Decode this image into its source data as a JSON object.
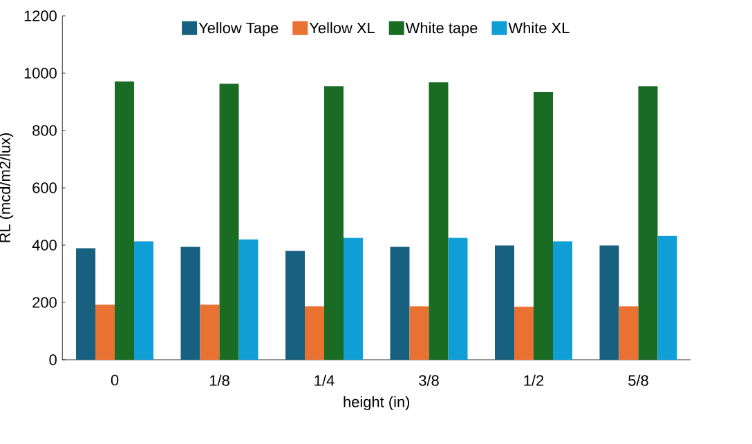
{
  "chart_data": {
    "type": "bar",
    "xlabel": "height (in)",
    "ylabel": "RL (mcd/m2/lux)",
    "categories": [
      "0",
      "1/8",
      "1/4",
      "3/8",
      "1/2",
      "5/8"
    ],
    "series": [
      {
        "name": "Yellow Tape",
        "color": "#17607f",
        "values": [
          389,
          394,
          380,
          394,
          399,
          399
        ]
      },
      {
        "name": "Yellow XL",
        "color": "#e97132",
        "values": [
          192,
          192,
          187,
          187,
          185,
          187
        ]
      },
      {
        "name": "White tape",
        "color": "#1a6b24",
        "values": [
          971,
          963,
          954,
          968,
          935,
          954
        ]
      },
      {
        "name": "White XL",
        "color": "#0f9ed5",
        "values": [
          413,
          420,
          425,
          425,
          413,
          432
        ]
      }
    ],
    "ylim": [
      0,
      1200
    ],
    "yticks": [
      0,
      200,
      400,
      600,
      800,
      1000,
      1200
    ],
    "grid": false,
    "legend": "top"
  }
}
